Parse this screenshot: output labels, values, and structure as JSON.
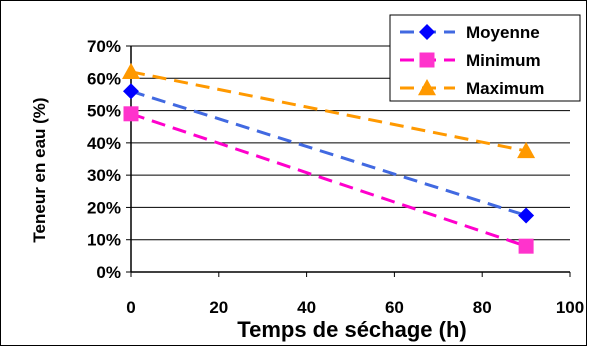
{
  "chart_data": {
    "type": "line",
    "x": [
      0,
      90
    ],
    "series": [
      {
        "name": "Moyenne",
        "values": [
          0.56,
          0.175
        ],
        "color": "#4169E1",
        "marker": "diamond",
        "marker_color": "#0000FF"
      },
      {
        "name": "Minimum",
        "values": [
          0.49,
          0.08
        ],
        "color": "#FF00CC",
        "marker": "square",
        "marker_color": "#FF33CC"
      },
      {
        "name": "Maximum",
        "values": [
          0.62,
          0.375
        ],
        "color": "#FF9900",
        "marker": "triangle",
        "marker_color": "#FF9900"
      }
    ],
    "xlabel": "Temps de séchage (h)",
    "ylabel": "Teneur en eau (%)",
    "xlim": [
      0,
      100
    ],
    "ylim": [
      0,
      0.7
    ],
    "x_ticks": [
      "0",
      "20",
      "40",
      "60",
      "80",
      "100"
    ],
    "y_ticks": [
      "0%",
      "10%",
      "20%",
      "30%",
      "40%",
      "50%",
      "60%",
      "70%"
    ],
    "grid": "horizontal",
    "legend_position": "top-right"
  }
}
